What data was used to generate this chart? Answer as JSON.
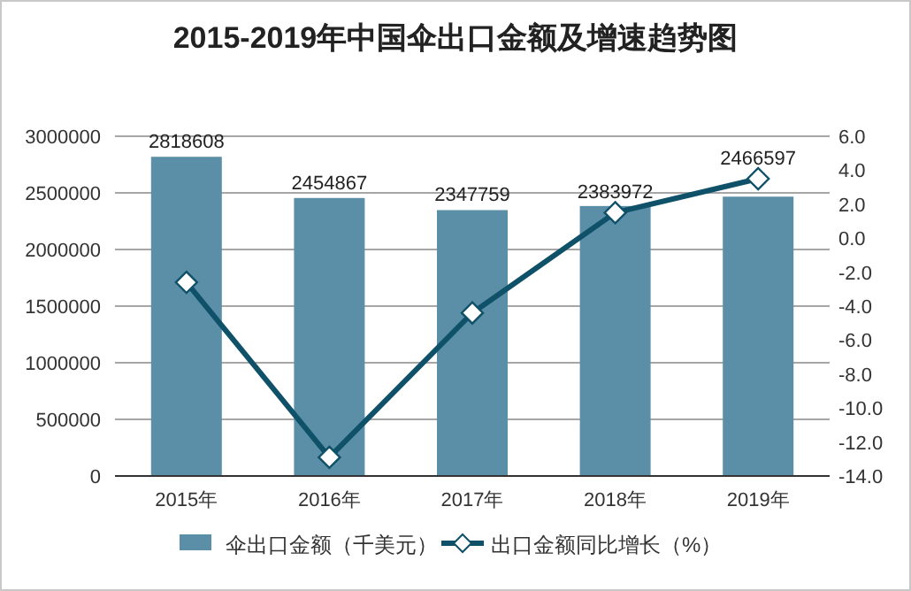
{
  "chart_data": {
    "type": "bar",
    "title": "2015-2019年中国伞出口金额及增速趋势图",
    "categories": [
      "2015年",
      "2016年",
      "2017年",
      "2018年",
      "2019年"
    ],
    "series": [
      {
        "name": "伞出口金额（千美元）",
        "color": "#5b8fa8",
        "values": [
          2818608,
          2454867,
          2347759,
          2383972,
          2466597
        ],
        "data_labels": true
      },
      {
        "name": "出口金额同比增长（%）",
        "type": "line",
        "axis": "y2",
        "color": "#0f5169",
        "marker": "diamond",
        "values": [
          -2.6,
          -12.9,
          -4.4,
          1.5,
          3.5
        ]
      }
    ],
    "ylim": [
      0,
      3000000
    ],
    "yticks": [
      0,
      500000,
      1000000,
      1500000,
      2000000,
      2500000,
      3000000
    ],
    "y2lim": [
      -14,
      6
    ],
    "y2ticks": [
      {
        "value": -14,
        "label": "-14.0"
      },
      {
        "value": -12,
        "label": "-12.0"
      },
      {
        "value": -10,
        "label": "-10.0"
      },
      {
        "value": -8,
        "label": "-8.0"
      },
      {
        "value": -6,
        "label": "-6.0"
      },
      {
        "value": -4,
        "label": "-4.0"
      },
      {
        "value": -2,
        "label": "-2.0"
      },
      {
        "value": 0,
        "label": "0.0"
      },
      {
        "value": 2,
        "label": "2.0"
      },
      {
        "value": 4,
        "label": "4.0"
      },
      {
        "value": 6,
        "label": "6.0"
      }
    ],
    "grid": "y",
    "legend": "bottom"
  }
}
